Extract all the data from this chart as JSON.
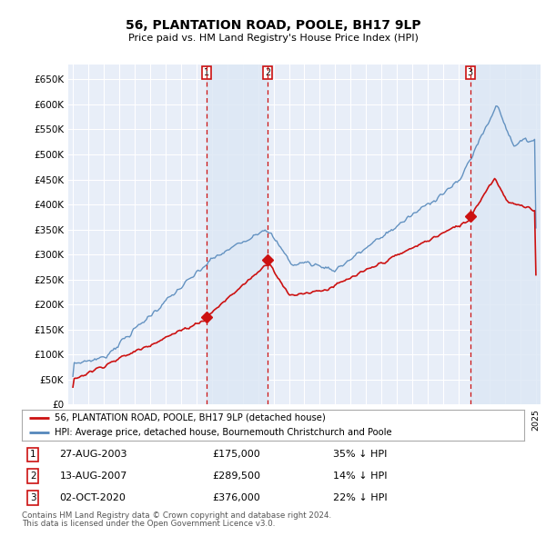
{
  "title": "56, PLANTATION ROAD, POOLE, BH17 9LP",
  "subtitle": "Price paid vs. HM Land Registry's House Price Index (HPI)",
  "ylabel_ticks": [
    "£0",
    "£50K",
    "£100K",
    "£150K",
    "£200K",
    "£250K",
    "£300K",
    "£350K",
    "£400K",
    "£450K",
    "£500K",
    "£550K",
    "£600K",
    "£650K"
  ],
  "ytick_values": [
    0,
    50000,
    100000,
    150000,
    200000,
    250000,
    300000,
    350000,
    400000,
    450000,
    500000,
    550000,
    600000,
    650000
  ],
  "background_color": "#ffffff",
  "plot_bg_color": "#e8eef8",
  "grid_color": "#ffffff",
  "hpi_color": "#5588bb",
  "price_color": "#cc1111",
  "transaction_color": "#cc1111",
  "shade_color": "#dde8f5",
  "legend_label_price": "56, PLANTATION ROAD, POOLE, BH17 9LP (detached house)",
  "legend_label_hpi": "HPI: Average price, detached house, Bournemouth Christchurch and Poole",
  "transactions": [
    {
      "num": 1,
      "date_str": "27-AUG-2003",
      "price": 175000,
      "pct": "35%",
      "direction": "↓",
      "x_year": 2003.65
    },
    {
      "num": 2,
      "date_str": "13-AUG-2007",
      "price": 289500,
      "pct": "14%",
      "direction": "↓",
      "x_year": 2007.62
    },
    {
      "num": 3,
      "date_str": "02-OCT-2020",
      "price": 376000,
      "pct": "22%",
      "direction": "↓",
      "x_year": 2020.75
    }
  ],
  "footnote1": "Contains HM Land Registry data © Crown copyright and database right 2024.",
  "footnote2": "This data is licensed under the Open Government Licence v3.0.",
  "xmin": 1994.7,
  "xmax": 2025.3,
  "ymin": 0,
  "ymax": 680000
}
